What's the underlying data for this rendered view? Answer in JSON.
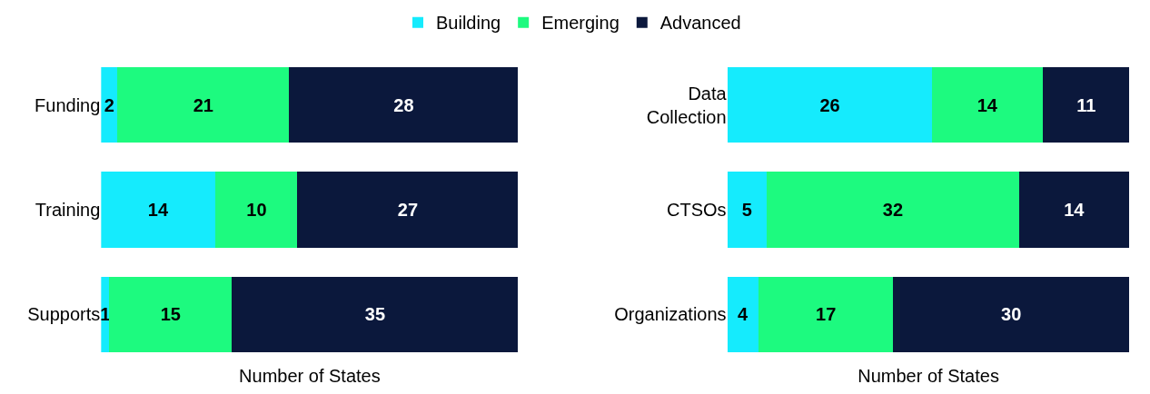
{
  "chart_data": [
    {
      "type": "bar",
      "orientation": "horizontal",
      "stacked": true,
      "data_labels": true,
      "legend": "top",
      "xlabel": "Number of States",
      "categories": [
        "Funding",
        "Training",
        "Supports"
      ],
      "series": [
        {
          "name": "Building",
          "color": "#15ebfd",
          "values": [
            2,
            14,
            1
          ]
        },
        {
          "name": "Emerging",
          "color": "#1dfa7f",
          "values": [
            21,
            10,
            15
          ]
        },
        {
          "name": "Advanced",
          "color": "#0b183c",
          "values": [
            28,
            27,
            35
          ]
        }
      ]
    },
    {
      "type": "bar",
      "orientation": "horizontal",
      "stacked": true,
      "data_labels": true,
      "legend": false,
      "xlabel": "Number of States",
      "categories": [
        "Data\nCollection",
        "CTSOs",
        "Organizations"
      ],
      "series": [
        {
          "color": "#15ebfd",
          "values": [
            26,
            5,
            4
          ]
        },
        {
          "color": "#1dfa7f",
          "values": [
            14,
            32,
            17
          ]
        },
        {
          "color": "#0b183c",
          "values": [
            11,
            14,
            30
          ]
        }
      ]
    }
  ]
}
